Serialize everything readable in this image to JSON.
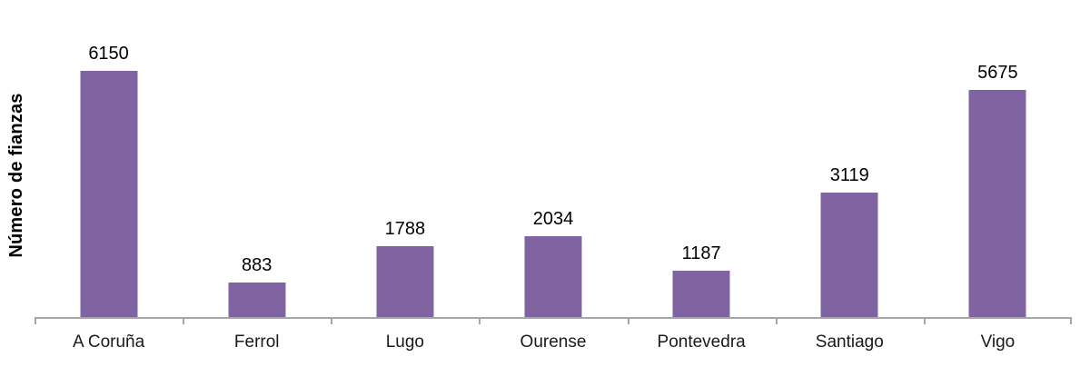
{
  "chart_data": {
    "type": "bar",
    "categories": [
      "A Coruña",
      "Ferrol",
      "Lugo",
      "Ourense",
      "Pontevedra",
      "Santiago",
      "Vigo"
    ],
    "values": [
      6150,
      883,
      1788,
      2034,
      1187,
      3119,
      5675
    ],
    "ylabel": "Número de fianzas",
    "xlabel": "",
    "ylim": [
      0,
      6150
    ],
    "grid": false,
    "legend": "none",
    "value_labels_shown": true,
    "bar_color": "#8064A2",
    "axis_color": "#A6A6A6",
    "label_color": "#000000"
  }
}
